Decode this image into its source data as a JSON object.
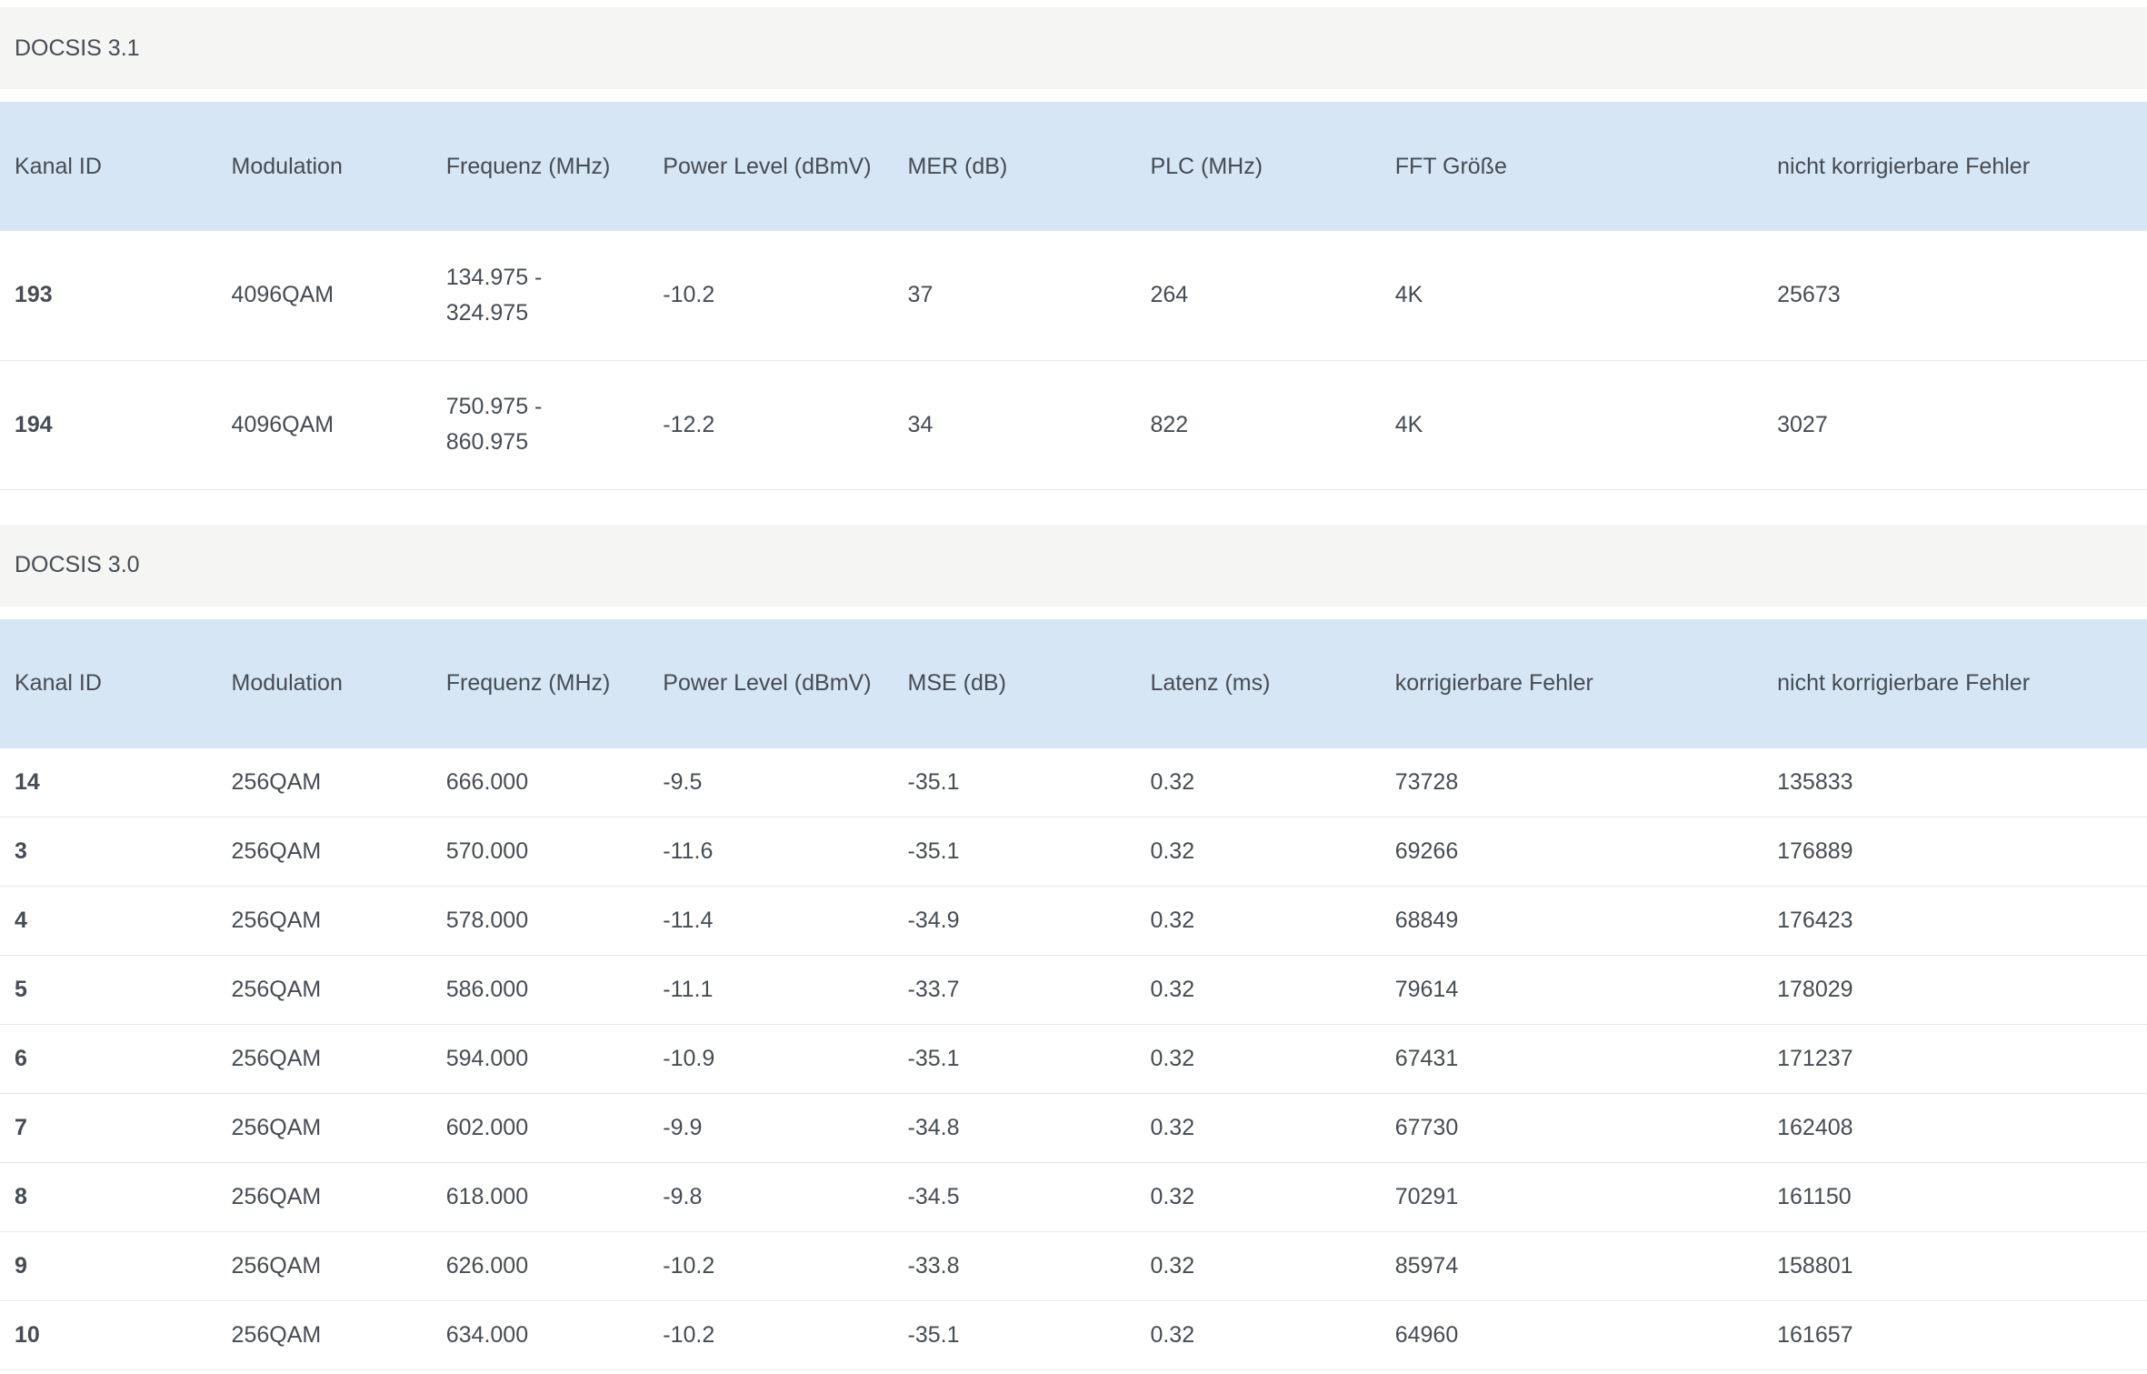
{
  "sections": [
    {
      "title": "DOCSIS 3.1",
      "columns": [
        "Kanal ID",
        "Modulation",
        "Frequenz (MHz)",
        "Power Level (dBmV)",
        "MER (dB)",
        "PLC (MHz)",
        "FFT Größe",
        "nicht korrigierbare Fehler"
      ],
      "rows": [
        [
          "193",
          "4096QAM",
          "134.975 - 324.975",
          "-10.2",
          "37",
          "264",
          "4K",
          "25673"
        ],
        [
          "194",
          "4096QAM",
          "750.975 - 860.975",
          "-12.2",
          "34",
          "822",
          "4K",
          "3027"
        ]
      ]
    },
    {
      "title": "DOCSIS 3.0",
      "columns": [
        "Kanal ID",
        "Modulation",
        "Frequenz (MHz)",
        "Power Level (dBmV)",
        "MSE (dB)",
        "Latenz (ms)",
        "korrigierbare Fehler",
        "nicht korrigierbare Fehler"
      ],
      "rows": [
        [
          "14",
          "256QAM",
          "666.000",
          "-9.5",
          "-35.1",
          "0.32",
          "73728",
          "135833"
        ],
        [
          "3",
          "256QAM",
          "570.000",
          "-11.6",
          "-35.1",
          "0.32",
          "69266",
          "176889"
        ],
        [
          "4",
          "256QAM",
          "578.000",
          "-11.4",
          "-34.9",
          "0.32",
          "68849",
          "176423"
        ],
        [
          "5",
          "256QAM",
          "586.000",
          "-11.1",
          "-33.7",
          "0.32",
          "79614",
          "178029"
        ],
        [
          "6",
          "256QAM",
          "594.000",
          "-10.9",
          "-35.1",
          "0.32",
          "67431",
          "171237"
        ],
        [
          "7",
          "256QAM",
          "602.000",
          "-9.9",
          "-34.8",
          "0.32",
          "67730",
          "162408"
        ],
        [
          "8",
          "256QAM",
          "618.000",
          "-9.8",
          "-34.5",
          "0.32",
          "70291",
          "161150"
        ],
        [
          "9",
          "256QAM",
          "626.000",
          "-10.2",
          "-33.8",
          "0.32",
          "85974",
          "158801"
        ],
        [
          "10",
          "256QAM",
          "634.000",
          "-10.2",
          "-35.1",
          "0.32",
          "64960",
          "161657"
        ]
      ]
    }
  ],
  "colors": {
    "section_title_bg": "#f5f5f3",
    "table_header_bg": "#d7e6f5",
    "row_border": "#e8e8e8",
    "text": "#454c54"
  }
}
